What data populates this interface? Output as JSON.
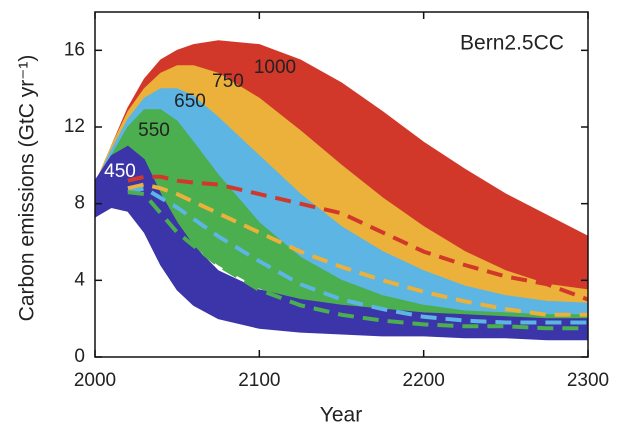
{
  "chart_data": {
    "type": "band",
    "annotation": "Bern2.5CC",
    "x_label": "Year",
    "y_label": "Carbon emissions (GtC yr⁻¹)",
    "x": [
      2000,
      2010,
      2020,
      2030,
      2040,
      2050,
      2060,
      2075,
      2100,
      2125,
      2150,
      2175,
      2200,
      2225,
      2250,
      2275,
      2300
    ],
    "xlim": [
      2000,
      2300
    ],
    "xticks": [
      2000,
      2100,
      2200,
      2300
    ],
    "ylim": [
      0,
      18
    ],
    "yticks": [
      0,
      4,
      8,
      12,
      16
    ],
    "series": [
      {
        "name": "1000",
        "color": "#d2382a",
        "upper": [
          9,
          11,
          13,
          14.5,
          15.5,
          16,
          16.3,
          16.5,
          16.3,
          15.5,
          14.3,
          12.8,
          11.2,
          9.8,
          8.5,
          7.4,
          6.3
        ],
        "lower": [
          7.3,
          8,
          8.8,
          9.2,
          9.3,
          9.2,
          8.9,
          8.5,
          7.8,
          7,
          6.3,
          5.6,
          5,
          4.5,
          4,
          3.7,
          3.4
        ],
        "median": [
          null,
          null,
          9.2,
          9.4,
          9.4,
          9.2,
          9.1,
          9.0,
          8.5,
          8,
          7.5,
          6.5,
          5.5,
          4.8,
          4.2,
          3.8,
          3.0
        ]
      },
      {
        "name": "750",
        "color": "#ebb13b",
        "upper": [
          9,
          11,
          12.8,
          14,
          14.8,
          15.2,
          15.2,
          14.8,
          13.5,
          11.8,
          10,
          8.3,
          6.8,
          5.5,
          4.5,
          3.8,
          3.5
        ],
        "lower": [
          7.3,
          8,
          8.6,
          8.8,
          8.6,
          8.2,
          7.8,
          7.2,
          6,
          5,
          4.2,
          3.6,
          3.2,
          2.8,
          2.5,
          2.3,
          2.2
        ],
        "median": [
          null,
          null,
          8.8,
          9,
          8.8,
          8.5,
          8.1,
          7.5,
          6.5,
          5.5,
          4.7,
          4,
          3.4,
          2.9,
          2.5,
          2.2,
          2.2
        ]
      },
      {
        "name": "650",
        "color": "#5cb5e3",
        "upper": [
          9,
          10.8,
          12.4,
          13.5,
          14,
          14,
          13.6,
          12.5,
          10.5,
          8.5,
          6.8,
          5.5,
          4.5,
          3.7,
          3.2,
          2.9,
          2.8
        ],
        "lower": [
          7.3,
          8,
          8.5,
          8.5,
          8.2,
          7.6,
          7,
          6,
          4.6,
          3.6,
          2.9,
          2.4,
          2.1,
          1.9,
          1.8,
          1.7,
          1.6
        ],
        "median": [
          null,
          null,
          8.6,
          8.8,
          8.3,
          7.8,
          7.2,
          6.3,
          5,
          3.8,
          3,
          2.5,
          2.1,
          1.9,
          1.8,
          1.8,
          1.8
        ]
      },
      {
        "name": "550",
        "color": "#4bae4f",
        "upper": [
          9,
          10.5,
          12,
          12.9,
          12.9,
          12.3,
          11.2,
          9.5,
          7,
          5.2,
          4,
          3.2,
          2.7,
          2.4,
          2.3,
          2.2,
          2.2
        ],
        "lower": [
          7.3,
          8,
          8.3,
          8,
          7.3,
          6.5,
          5.8,
          4.8,
          3.6,
          2.7,
          2.1,
          1.8,
          1.6,
          1.5,
          1.4,
          1.3,
          1.3
        ],
        "median": [
          null,
          null,
          8.6,
          8.5,
          7.5,
          6.5,
          5.8,
          4.8,
          3.5,
          2.7,
          2.2,
          1.9,
          1.7,
          1.6,
          1.6,
          1.5,
          1.5
        ]
      },
      {
        "name": "450",
        "color": "#3b35a9",
        "upper": [
          9.2,
          10.5,
          11,
          10.3,
          8.5,
          7,
          5.8,
          4.5,
          3.5,
          3,
          2.7,
          2.5,
          2.3,
          2.2,
          2.1,
          2,
          2
        ],
        "lower": [
          7.3,
          7.8,
          7.6,
          6.5,
          4.8,
          3.5,
          2.7,
          2,
          1.5,
          1.3,
          1.2,
          1.1,
          1.1,
          1,
          1,
          0.9,
          0.9
        ]
      }
    ]
  }
}
